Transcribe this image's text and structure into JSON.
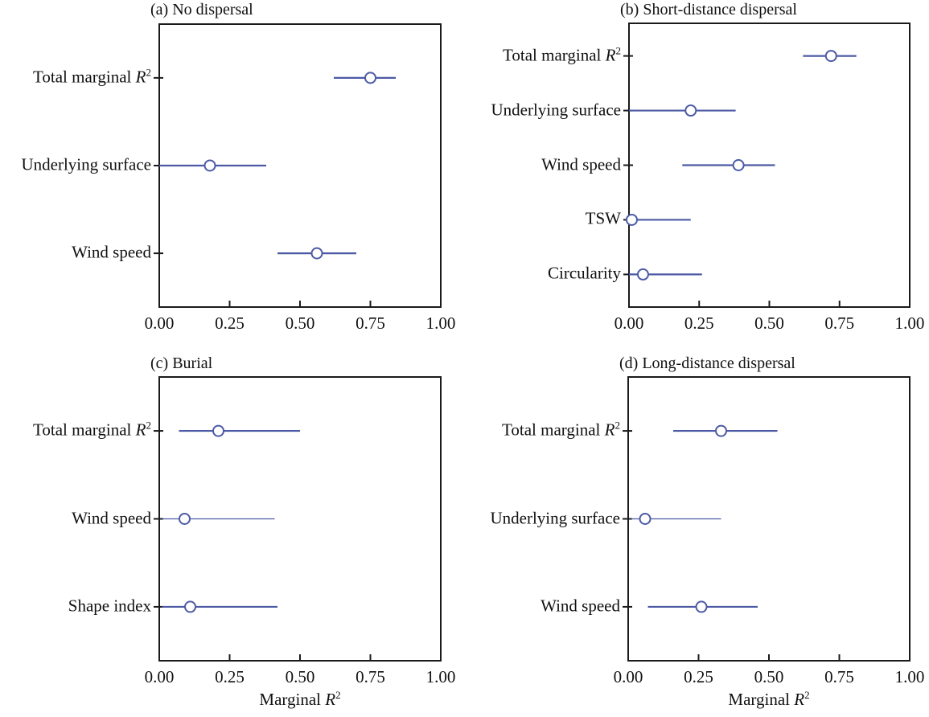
{
  "figure": {
    "background": "#ffffff",
    "accent_color": "#4c5aa5",
    "axis_color": "#1a1a1a",
    "marker_fill": "#ffffff",
    "x_axis_title": "Marginal R²"
  },
  "chart_data": [
    {
      "id": "a",
      "type": "scatter",
      "title": "(a) No dispersal",
      "xlabel": "Marginal R²",
      "show_xlabel": false,
      "xlim": [
        0,
        1
      ],
      "grid": false,
      "xticks": [
        "0.00",
        "0.25",
        "0.50",
        "0.75",
        "1.00"
      ],
      "xtick_values": [
        0,
        0.25,
        0.5,
        0.75,
        1
      ],
      "categories": [
        "Total marginal R²",
        "Underlying surface",
        "Wind speed"
      ],
      "points": [
        {
          "category": "Total marginal R²",
          "value": 0.75,
          "ci": [
            0.62,
            0.84
          ]
        },
        {
          "category": "Underlying surface",
          "value": 0.18,
          "ci": [
            0.0,
            0.38
          ]
        },
        {
          "category": "Wind speed",
          "value": 0.56,
          "ci": [
            0.42,
            0.7
          ]
        }
      ]
    },
    {
      "id": "b",
      "type": "scatter",
      "title": "(b) Short-distance dispersal",
      "xlabel": "Marginal R²",
      "show_xlabel": false,
      "xlim": [
        0,
        1
      ],
      "grid": false,
      "xticks": [
        "0.00",
        "0.25",
        "0.50",
        "0.75",
        "1.00"
      ],
      "xtick_values": [
        0,
        0.25,
        0.5,
        0.75,
        1
      ],
      "categories": [
        "Total marginal R²",
        "Underlying surface",
        "Wind speed",
        "TSW",
        "Circularity"
      ],
      "points": [
        {
          "category": "Total marginal R²",
          "value": 0.72,
          "ci": [
            0.62,
            0.81
          ]
        },
        {
          "category": "Underlying surface",
          "value": 0.22,
          "ci": [
            0.0,
            0.38
          ]
        },
        {
          "category": "Wind speed",
          "value": 0.39,
          "ci": [
            0.19,
            0.52
          ]
        },
        {
          "category": "TSW",
          "value": 0.01,
          "ci": [
            0.0,
            0.22
          ]
        },
        {
          "category": "Circularity",
          "value": 0.05,
          "ci": [
            0.0,
            0.26
          ]
        }
      ]
    },
    {
      "id": "c",
      "type": "scatter",
      "title": "(c) Burial",
      "xlabel": "Marginal R²",
      "show_xlabel": true,
      "xlim": [
        0,
        1
      ],
      "grid": false,
      "xticks": [
        "0.00",
        "0.25",
        "0.50",
        "0.75",
        "1.00"
      ],
      "xtick_values": [
        0,
        0.25,
        0.5,
        0.75,
        1
      ],
      "categories": [
        "Total marginal R²",
        "Wind speed",
        "Shape index"
      ],
      "points": [
        {
          "category": "Total marginal R²",
          "value": 0.21,
          "ci": [
            0.07,
            0.5
          ]
        },
        {
          "category": "Wind speed",
          "value": 0.09,
          "ci": [
            0.01,
            0.41
          ],
          "thin": true
        },
        {
          "category": "Shape index",
          "value": 0.11,
          "ci": [
            0.01,
            0.42
          ]
        }
      ]
    },
    {
      "id": "d",
      "type": "scatter",
      "title": "(d) Long-distance dispersal",
      "xlabel": "Marginal R²",
      "show_xlabel": true,
      "xlim": [
        0,
        1
      ],
      "grid": false,
      "xticks": [
        "0.00",
        "0.25",
        "0.50",
        "0.75",
        "1.00"
      ],
      "xtick_values": [
        0,
        0.25,
        0.5,
        0.75,
        1
      ],
      "categories": [
        "Total marginal R²",
        "Underlying surface",
        "Wind speed"
      ],
      "points": [
        {
          "category": "Total marginal R²",
          "value": 0.33,
          "ci": [
            0.16,
            0.53
          ]
        },
        {
          "category": "Underlying surface",
          "value": 0.06,
          "ci": [
            0.01,
            0.33
          ],
          "thin": true
        },
        {
          "category": "Wind speed",
          "value": 0.26,
          "ci": [
            0.07,
            0.46
          ]
        }
      ]
    }
  ]
}
